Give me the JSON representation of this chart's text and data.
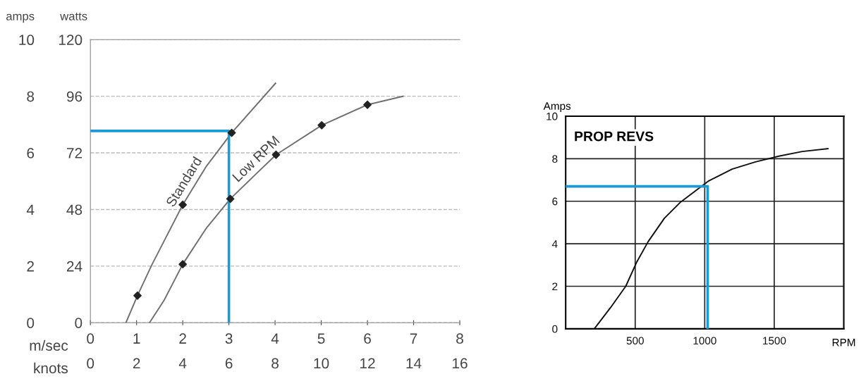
{
  "chart_data": [
    {
      "type": "line",
      "ylabel": "watts",
      "y2label": "amps",
      "xlabel": "m/sec",
      "x2label": "knots",
      "xlim": [
        0,
        8
      ],
      "xticks": [
        0,
        1,
        2,
        3,
        4,
        5,
        6,
        7,
        8
      ],
      "x2lim": [
        0,
        16
      ],
      "x2ticks": [
        0,
        2,
        4,
        6,
        8,
        10,
        12,
        14,
        16
      ],
      "ylim": [
        0,
        120
      ],
      "yticks": [
        0,
        24,
        48,
        72,
        96,
        120
      ],
      "y2lim": [
        0,
        10
      ],
      "y2ticks": [
        0,
        2,
        4,
        6,
        8,
        10
      ],
      "grid": "y",
      "series": [
        {
          "type": "line",
          "name": "Standard",
          "marker": "none",
          "color": "#707070",
          "x": [
            0.77,
            1.02,
            1.33,
            2.0,
            2.5,
            3.06,
            4.01
          ],
          "values": [
            0,
            11.5,
            24.5,
            50,
            66,
            80.5,
            101.5
          ]
        },
        {
          "type": "line",
          "name": "Low RPM",
          "marker": "none",
          "color": "#707070",
          "x": [
            1.28,
            1.59,
            2.0,
            2.5,
            3.03,
            3.51,
            4.02,
            5.01,
            6.0,
            6.77
          ],
          "values": [
            0,
            9.3,
            24.8,
            39.8,
            52.5,
            61.6,
            71.2,
            83.7,
            92.4,
            96
          ]
        },
        {
          "type": "scatter",
          "marker": "diamond",
          "color": "#222222",
          "x": [
            1.02,
            2.0,
            3.06
          ],
          "values": [
            11.5,
            50,
            80.5
          ]
        },
        {
          "type": "scatter",
          "marker": "diamond",
          "color": "#222222",
          "x": [
            2.0,
            3.03,
            4.02,
            5.01,
            6.0
          ],
          "values": [
            24.8,
            52.5,
            71.2,
            83.7,
            92.4
          ]
        },
        {
          "type": "line",
          "marker": "none",
          "color": "#1a9ad6",
          "x": [
            0,
            3,
            3
          ],
          "values": [
            81.3,
            81.3,
            0
          ]
        }
      ]
    },
    {
      "type": "line",
      "title": "PROP REVS",
      "ylabel": "Amps",
      "xlabel": "RPM",
      "xlim": [
        0,
        2000
      ],
      "xticks": [
        500,
        1000,
        1500
      ],
      "ylim": [
        0,
        10
      ],
      "yticks": [
        0,
        2,
        4,
        6,
        8,
        10
      ],
      "grid": true,
      "series": [
        {
          "marker": "none",
          "color": "#111111",
          "x": [
            206,
            323,
            432,
            508,
            593,
            710,
            828,
            962,
            1029,
            1197,
            1365,
            1533,
            1701,
            1886
          ],
          "values": [
            0,
            1.0,
            2.0,
            3.1,
            4.1,
            5.2,
            5.97,
            6.63,
            6.96,
            7.51,
            7.85,
            8.12,
            8.34,
            8.47
          ]
        },
        {
          "marker": "none",
          "color": "#1a9ad6",
          "x": [
            0,
            1021,
            1021
          ],
          "values": [
            6.7,
            6.7,
            0
          ]
        }
      ]
    }
  ]
}
